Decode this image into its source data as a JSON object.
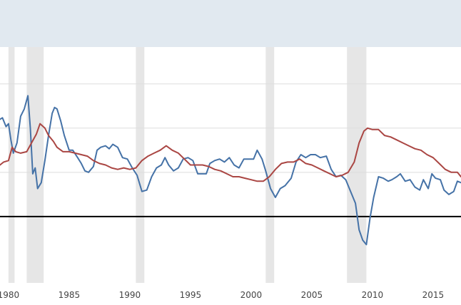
{
  "chart_data": {
    "type": "line",
    "x_range": [
      1979.3,
      2017.3
    ],
    "y_range": [
      -4.5,
      11.5
    ],
    "x_ticks": [
      {
        "value": 1980,
        "label": "1980"
      },
      {
        "value": 1985,
        "label": "1985"
      },
      {
        "value": 1990,
        "label": "1990"
      },
      {
        "value": 1995,
        "label": "1995"
      },
      {
        "value": 2000,
        "label": "2000"
      },
      {
        "value": 2005,
        "label": "2005"
      },
      {
        "value": 2010,
        "label": "2010"
      },
      {
        "value": 2015,
        "label": "2015"
      }
    ],
    "y_gridlines": [
      0,
      3,
      6,
      9
    ],
    "zero_line": 0,
    "grid": true,
    "legend": "none",
    "shaded_periods": [
      [
        1980.0,
        1980.5
      ],
      [
        1981.5,
        1982.9
      ],
      [
        1990.5,
        1991.2
      ],
      [
        2001.2,
        2001.9
      ],
      [
        2007.9,
        2009.5
      ]
    ],
    "series": [
      {
        "color": "#4572a7",
        "points": [
          [
            1979.3,
            6.6
          ],
          [
            1979.5,
            6.7
          ],
          [
            1979.8,
            6.1
          ],
          [
            1980.0,
            6.3
          ],
          [
            1980.2,
            5.2
          ],
          [
            1980.4,
            4.3
          ],
          [
            1980.7,
            5.0
          ],
          [
            1981.0,
            6.8
          ],
          [
            1981.3,
            7.3
          ],
          [
            1981.6,
            8.2
          ],
          [
            1981.8,
            6.0
          ],
          [
            1982.0,
            2.9
          ],
          [
            1982.2,
            3.3
          ],
          [
            1982.4,
            1.9
          ],
          [
            1982.7,
            2.3
          ],
          [
            1983.0,
            3.8
          ],
          [
            1983.3,
            5.5
          ],
          [
            1983.6,
            7.0
          ],
          [
            1983.8,
            7.4
          ],
          [
            1984.0,
            7.3
          ],
          [
            1984.3,
            6.5
          ],
          [
            1984.6,
            5.5
          ],
          [
            1985.0,
            4.5
          ],
          [
            1985.3,
            4.5
          ],
          [
            1985.7,
            4.0
          ],
          [
            1986.0,
            3.6
          ],
          [
            1986.3,
            3.1
          ],
          [
            1986.6,
            3.0
          ],
          [
            1987.0,
            3.4
          ],
          [
            1987.3,
            4.5
          ],
          [
            1987.6,
            4.7
          ],
          [
            1988.0,
            4.8
          ],
          [
            1988.3,
            4.6
          ],
          [
            1988.6,
            4.9
          ],
          [
            1989.0,
            4.7
          ],
          [
            1989.4,
            4.0
          ],
          [
            1989.8,
            3.9
          ],
          [
            1990.2,
            3.3
          ],
          [
            1990.6,
            2.8
          ],
          [
            1991.0,
            1.7
          ],
          [
            1991.4,
            1.8
          ],
          [
            1991.8,
            2.7
          ],
          [
            1992.2,
            3.3
          ],
          [
            1992.6,
            3.5
          ],
          [
            1992.9,
            4.0
          ],
          [
            1993.2,
            3.5
          ],
          [
            1993.6,
            3.1
          ],
          [
            1994.0,
            3.3
          ],
          [
            1994.4,
            3.9
          ],
          [
            1994.8,
            4.0
          ],
          [
            1995.2,
            3.8
          ],
          [
            1995.6,
            2.9
          ],
          [
            1995.9,
            2.9
          ],
          [
            1996.3,
            2.9
          ],
          [
            1996.6,
            3.6
          ],
          [
            1997.0,
            3.8
          ],
          [
            1997.4,
            3.9
          ],
          [
            1997.8,
            3.7
          ],
          [
            1998.2,
            4.0
          ],
          [
            1998.6,
            3.5
          ],
          [
            1999.0,
            3.3
          ],
          [
            1999.4,
            3.9
          ],
          [
            1999.8,
            3.9
          ],
          [
            2000.2,
            3.9
          ],
          [
            2000.5,
            4.5
          ],
          [
            2000.9,
            3.9
          ],
          [
            2001.2,
            3.1
          ],
          [
            2001.6,
            1.9
          ],
          [
            2002.0,
            1.3
          ],
          [
            2002.4,
            1.9
          ],
          [
            2002.8,
            2.1
          ],
          [
            2003.3,
            2.6
          ],
          [
            2003.7,
            3.7
          ],
          [
            2004.1,
            4.2
          ],
          [
            2004.5,
            4.0
          ],
          [
            2004.9,
            4.2
          ],
          [
            2005.3,
            4.2
          ],
          [
            2005.7,
            4.0
          ],
          [
            2006.2,
            4.1
          ],
          [
            2006.6,
            3.2
          ],
          [
            2007.0,
            2.7
          ],
          [
            2007.4,
            2.8
          ],
          [
            2007.8,
            2.5
          ],
          [
            2008.2,
            1.7
          ],
          [
            2008.6,
            0.9
          ],
          [
            2008.9,
            -0.9
          ],
          [
            2009.2,
            -1.6
          ],
          [
            2009.5,
            -1.9
          ],
          [
            2009.8,
            -0.1
          ],
          [
            2010.1,
            1.3
          ],
          [
            2010.5,
            2.7
          ],
          [
            2010.9,
            2.6
          ],
          [
            2011.3,
            2.4
          ],
          [
            2011.6,
            2.5
          ],
          [
            2012.0,
            2.7
          ],
          [
            2012.3,
            2.9
          ],
          [
            2012.7,
            2.4
          ],
          [
            2013.1,
            2.5
          ],
          [
            2013.5,
            2.0
          ],
          [
            2013.9,
            1.8
          ],
          [
            2014.2,
            2.5
          ],
          [
            2014.6,
            1.9
          ],
          [
            2014.9,
            2.9
          ],
          [
            2015.2,
            2.6
          ],
          [
            2015.6,
            2.5
          ],
          [
            2015.9,
            1.8
          ],
          [
            2016.3,
            1.5
          ],
          [
            2016.7,
            1.7
          ],
          [
            2017.0,
            2.4
          ],
          [
            2017.3,
            2.3
          ]
        ]
      },
      {
        "color": "#aa4643",
        "points": [
          [
            1979.3,
            3.5
          ],
          [
            1979.6,
            3.7
          ],
          [
            1980.0,
            3.8
          ],
          [
            1980.3,
            4.7
          ],
          [
            1980.6,
            4.4
          ],
          [
            1981.0,
            4.3
          ],
          [
            1981.5,
            4.4
          ],
          [
            1981.9,
            5.0
          ],
          [
            1982.3,
            5.6
          ],
          [
            1982.6,
            6.3
          ],
          [
            1983.0,
            6.0
          ],
          [
            1983.3,
            5.5
          ],
          [
            1983.7,
            5.1
          ],
          [
            1984.0,
            4.7
          ],
          [
            1984.5,
            4.4
          ],
          [
            1985.0,
            4.4
          ],
          [
            1985.5,
            4.3
          ],
          [
            1986.0,
            4.2
          ],
          [
            1986.5,
            4.1
          ],
          [
            1987.0,
            3.8
          ],
          [
            1987.5,
            3.6
          ],
          [
            1988.0,
            3.5
          ],
          [
            1988.5,
            3.3
          ],
          [
            1989.0,
            3.2
          ],
          [
            1989.5,
            3.3
          ],
          [
            1990.0,
            3.2
          ],
          [
            1990.5,
            3.3
          ],
          [
            1991.0,
            3.8
          ],
          [
            1991.5,
            4.1
          ],
          [
            1992.0,
            4.3
          ],
          [
            1992.5,
            4.5
          ],
          [
            1993.0,
            4.8
          ],
          [
            1993.5,
            4.5
          ],
          [
            1994.0,
            4.3
          ],
          [
            1994.5,
            3.9
          ],
          [
            1995.0,
            3.5
          ],
          [
            1995.5,
            3.5
          ],
          [
            1996.0,
            3.5
          ],
          [
            1996.5,
            3.4
          ],
          [
            1997.0,
            3.2
          ],
          [
            1997.5,
            3.1
          ],
          [
            1998.0,
            2.9
          ],
          [
            1998.5,
            2.7
          ],
          [
            1999.0,
            2.7
          ],
          [
            1999.5,
            2.6
          ],
          [
            2000.0,
            2.5
          ],
          [
            2000.5,
            2.4
          ],
          [
            2001.0,
            2.4
          ],
          [
            2001.5,
            2.7
          ],
          [
            2002.0,
            3.2
          ],
          [
            2002.5,
            3.6
          ],
          [
            2003.0,
            3.7
          ],
          [
            2003.5,
            3.7
          ],
          [
            2004.0,
            3.9
          ],
          [
            2004.5,
            3.6
          ],
          [
            2005.0,
            3.5
          ],
          [
            2005.5,
            3.3
          ],
          [
            2006.0,
            3.1
          ],
          [
            2006.5,
            2.9
          ],
          [
            2007.0,
            2.7
          ],
          [
            2007.5,
            2.8
          ],
          [
            2008.0,
            3.0
          ],
          [
            2008.5,
            3.7
          ],
          [
            2008.9,
            5.0
          ],
          [
            2009.3,
            5.8
          ],
          [
            2009.6,
            6.0
          ],
          [
            2010.0,
            5.9
          ],
          [
            2010.5,
            5.9
          ],
          [
            2011.0,
            5.5
          ],
          [
            2011.5,
            5.4
          ],
          [
            2012.0,
            5.2
          ],
          [
            2012.5,
            5.0
          ],
          [
            2013.0,
            4.8
          ],
          [
            2013.5,
            4.6
          ],
          [
            2014.0,
            4.5
          ],
          [
            2014.5,
            4.2
          ],
          [
            2015.0,
            4.0
          ],
          [
            2015.5,
            3.6
          ],
          [
            2016.0,
            3.2
          ],
          [
            2016.5,
            3.0
          ],
          [
            2017.0,
            3.0
          ],
          [
            2017.3,
            2.7
          ]
        ]
      }
    ]
  }
}
